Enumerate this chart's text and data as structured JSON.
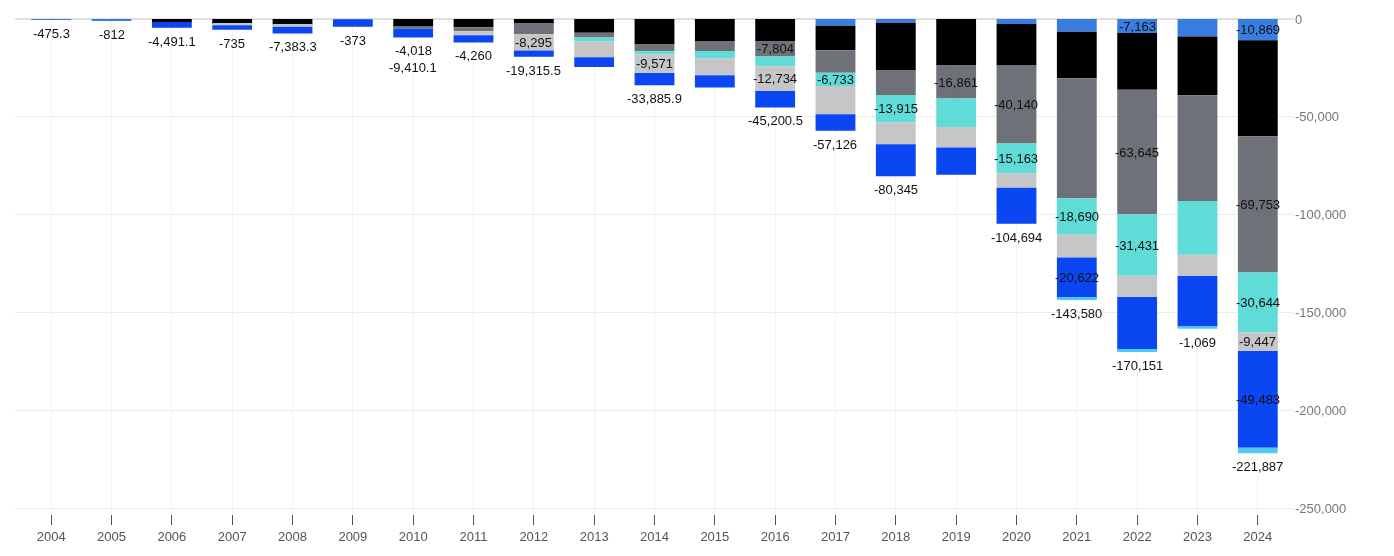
{
  "chart_data": {
    "type": "bar",
    "stacked": true,
    "categories": [
      "2004",
      "2005",
      "2006",
      "2007",
      "2008",
      "2009",
      "2010",
      "2011",
      "2012",
      "2013",
      "2014",
      "2015",
      "2016",
      "2017",
      "2018",
      "2019",
      "2020",
      "2021",
      "2022",
      "2023",
      "2024"
    ],
    "series": [
      {
        "color": "#3a7de0",
        "values": [
          -475.3,
          -812,
          0,
          0,
          0,
          -373,
          0,
          0,
          0,
          0,
          0,
          0,
          0,
          -3500,
          -2000,
          0,
          -2500,
          -6500,
          -7163,
          -9000,
          -10869
        ],
        "value_labels": [
          null,
          null,
          null,
          null,
          null,
          "-373",
          null,
          null,
          null,
          null,
          null,
          null,
          null,
          null,
          null,
          null,
          null,
          null,
          "-7,163",
          null,
          "-10,869"
        ]
      },
      {
        "color": "#000000",
        "values": [
          0,
          0,
          -1500,
          -2500,
          -3000,
          0,
          -4018,
          -4260,
          -2250,
          -7000,
          -13000,
          -11300,
          -11300,
          -12500,
          -24300,
          -23800,
          -21000,
          -23800,
          -29000,
          -30000,
          -49000
        ],
        "value_labels": [
          null,
          null,
          null,
          null,
          null,
          null,
          "-4,018",
          "-4,260",
          null,
          null,
          null,
          null,
          null,
          null,
          null,
          null,
          null,
          null,
          null,
          null,
          null
        ]
      },
      {
        "color": "#6e7177",
        "values": [
          0,
          0,
          0,
          0,
          0,
          0,
          -1000,
          -2000,
          -5600,
          -2500,
          -3500,
          -5000,
          -7804,
          -11500,
          -12500,
          -16861,
          -40140,
          -61268,
          -63645,
          -54000,
          -69753
        ],
        "value_labels": [
          null,
          null,
          null,
          null,
          null,
          null,
          null,
          null,
          null,
          null,
          null,
          null,
          "-7,804",
          null,
          null,
          "-16,861",
          "-40,140",
          null,
          "-63,645",
          null,
          "-69,753"
        ]
      },
      {
        "color": "#5fdcd8",
        "values": [
          0,
          0,
          0,
          0,
          0,
          0,
          0,
          0,
          0,
          -2000,
          -1500,
          -3700,
          -5000,
          -6733,
          -13915,
          -14500,
          -15163,
          -18690,
          -31431,
          -27500,
          -30644
        ],
        "value_labels": [
          null,
          null,
          null,
          null,
          null,
          null,
          null,
          null,
          null,
          null,
          null,
          null,
          null,
          "-6,733",
          "-13,915",
          null,
          "-15,163",
          "-18,690",
          "-31,431",
          null,
          "-30,644"
        ]
      },
      {
        "color": "#c6c6c8",
        "values": [
          0,
          0,
          0,
          -735,
          -1000,
          0,
          0,
          -2000,
          -8295,
          -8000,
          -9571,
          -8700,
          -12734,
          -14393,
          -11300,
          -10500,
          -7500,
          -11700,
          -10900,
          -10900,
          -9447
        ],
        "value_labels": [
          null,
          null,
          null,
          "-735",
          null,
          null,
          null,
          null,
          "-8,295",
          null,
          "-9,571",
          null,
          "-12,734",
          null,
          null,
          null,
          null,
          null,
          null,
          null,
          "-9,447"
        ]
      },
      {
        "color": "#0a46f2",
        "values": [
          0,
          0,
          -2991.1,
          -2265,
          -3383.3,
          -3627,
          -4392.1,
          -3740,
          -3170.5,
          -5000,
          -6314.9,
          -6300,
          -8362.5,
          -8500,
          -16330,
          -14000,
          -18391,
          -20622,
          -27012,
          -25800,
          -49483
        ],
        "value_labels": [
          null,
          null,
          null,
          null,
          null,
          null,
          null,
          null,
          null,
          null,
          null,
          null,
          null,
          null,
          null,
          null,
          null,
          "-20,622",
          null,
          null,
          "-49,483"
        ]
      },
      {
        "color": "#4fc9f0",
        "values": [
          0,
          0,
          0,
          0,
          0,
          0,
          0,
          0,
          0,
          0,
          0,
          0,
          0,
          0,
          0,
          0,
          0,
          -1000,
          -1000,
          -1069,
          -2691
        ],
        "value_labels": [
          null,
          null,
          null,
          null,
          null,
          null,
          null,
          null,
          null,
          null,
          null,
          null,
          null,
          null,
          null,
          null,
          null,
          null,
          null,
          "-1,069",
          null
        ]
      }
    ],
    "totals": [
      "-475.3",
      "-812",
      "-4,491.1",
      null,
      "-7,383.3",
      null,
      "-9,410.1",
      null,
      "-19,315.5",
      null,
      "-33,885.9",
      null,
      "-45,200.5",
      "-57,126",
      "-80,345",
      null,
      "-104,694",
      "-143,580",
      "-170,151",
      null,
      "-221,887"
    ],
    "ylim": [
      -253000,
      0
    ],
    "yticks": [
      {
        "value": 0,
        "label": "0"
      },
      {
        "value": -50000,
        "label": "-50,000"
      },
      {
        "value": -100000,
        "label": "-100,000"
      },
      {
        "value": -150000,
        "label": "-150,000"
      },
      {
        "value": -200000,
        "label": "-200,000"
      },
      {
        "value": -250000,
        "label": "-250,000"
      }
    ],
    "grid": true
  }
}
